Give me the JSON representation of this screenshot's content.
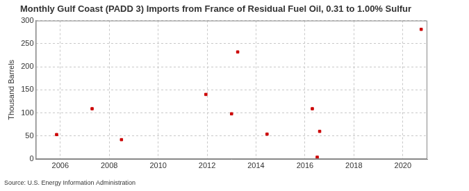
{
  "chart_data": {
    "type": "scatter",
    "title": "Monthly Gulf Coast (PADD 3) Imports from France of Residual Fuel Oil, 0.31 to 1.00% Sulfur",
    "y_label": "Thousand Barrels",
    "source": "Source: U.S. Energy Information Administration",
    "x": [
      2005.85,
      2007.3,
      2008.5,
      2011.95,
      2013.0,
      2013.25,
      2014.45,
      2016.3,
      2016.5,
      2016.6,
      2020.75
    ],
    "values": [
      53,
      109,
      42,
      140,
      98,
      232,
      54,
      109,
      4,
      60,
      281
    ],
    "color": "#cc0000",
    "marker": "square",
    "xlim": [
      2005,
      2021
    ],
    "xticks": [
      2006,
      2008,
      2010,
      2012,
      2014,
      2016,
      2018,
      2020
    ],
    "ylim": [
      0,
      300
    ],
    "yticks": [
      0,
      50,
      100,
      150,
      200,
      250,
      300
    ],
    "grid": true
  }
}
